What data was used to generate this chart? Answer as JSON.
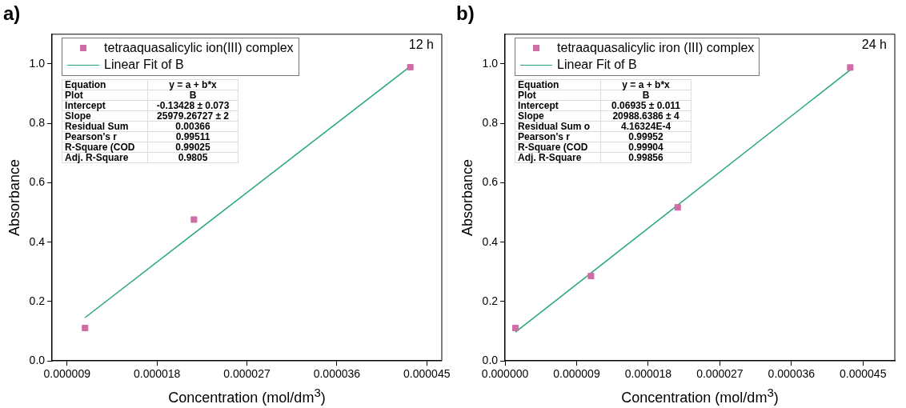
{
  "chart_data": [
    {
      "type": "scatter",
      "title": "a)",
      "xlabel": "Concentration (mol/dm$^{3}$)",
      "ylabel": "Absorbance",
      "xlim": [
        7.5e-06,
        4.65e-05
      ],
      "ylim": [
        0,
        1.1
      ],
      "xticks": [
        {
          "value": 9e-06,
          "label": "0.000009"
        },
        {
          "value": 1.8e-05,
          "label": "0.000018"
        },
        {
          "value": 2.7e-05,
          "label": "0.000027"
        },
        {
          "value": 3.6e-05,
          "label": "0.000036"
        },
        {
          "value": 4.5e-05,
          "label": "0.000045"
        }
      ],
      "yticks": [
        {
          "value": 0,
          "label": "0.0"
        },
        {
          "value": 0.2,
          "label": "0.2"
        },
        {
          "value": 0.4,
          "label": "0.4"
        },
        {
          "value": 0.6,
          "label": "0.6"
        },
        {
          "value": 0.8,
          "label": "0.8"
        },
        {
          "value": 1,
          "label": "1.0"
        }
      ],
      "grid": false,
      "legend": "top left",
      "marker": "square",
      "series": [
        {
          "name": "tetraaquasalicylic ion(III) complex",
          "color": "#d06ca6",
          "x": [
            1.08e-05,
            2.17e-05,
            4.335e-05
          ],
          "values": [
            0.111,
            0.476,
            0.989
          ]
        },
        {
          "name": "Linear Fit of B",
          "type": "line",
          "color": "#2aa67f",
          "line_style": "solid",
          "x": [
            1.08e-05,
            4.335e-05
          ],
          "values": [
            0.146,
            0.992
          ],
          "marker": "none"
        }
      ],
      "annotations": [
        "12 h",
        "Equation",
        "y = a + b*x",
        "Plot",
        "B",
        "Intercept",
        "-0.13428 ± 0.073",
        "Slope",
        "25979.26727 ± 2",
        "Residual Sum",
        "0.00366",
        "Pearson's r",
        "0.99511",
        "R-Square (COD",
        "0.99025",
        "Adj. R-Square",
        "0.9805"
      ]
    },
    {
      "type": "scatter",
      "title": "b)",
      "xlabel": "Concentration (mol/dm$^{3}$)",
      "ylabel": "Absorbance",
      "xlim": [
        0,
        4.9e-05
      ],
      "ylim": [
        0,
        1.1
      ],
      "xticks": [
        {
          "value": 0,
          "label": "0.000000"
        },
        {
          "value": 9e-06,
          "label": "0.000009"
        },
        {
          "value": 1.8e-05,
          "label": "0.000018"
        },
        {
          "value": 2.7e-05,
          "label": "0.000027"
        },
        {
          "value": 3.6e-05,
          "label": "0.000036"
        },
        {
          "value": 4.5e-05,
          "label": "0.000045"
        }
      ],
      "yticks": [
        {
          "value": 0,
          "label": "0.0"
        },
        {
          "value": 0.2,
          "label": "0.2"
        },
        {
          "value": 0.4,
          "label": "0.4"
        },
        {
          "value": 0.6,
          "label": "0.6"
        },
        {
          "value": 0.8,
          "label": "0.8"
        },
        {
          "value": 1,
          "label": "1.0"
        }
      ],
      "grid": false,
      "legend": "top left",
      "marker": "square",
      "series": [
        {
          "name": "tetraaquasalicylic iron (III) complex",
          "color": "#d06ca6",
          "x": [
            1.31e-06,
            1.08e-05,
            2.17e-05,
            4.34e-05
          ],
          "values": [
            0.111,
            0.286,
            0.517,
            0.988
          ]
        },
        {
          "name": "Linear Fit of B",
          "type": "line",
          "color": "#2aa67f",
          "line_style": "solid",
          "x": [
            1.31e-06,
            4.34e-05
          ],
          "values": [
            0.097,
            0.98
          ],
          "marker": "none"
        }
      ],
      "annotations": [
        "24 h",
        "Equation",
        "y = a + b*x",
        "Plot",
        "B",
        "Intercept",
        "0.06935 ± 0.011",
        "Slope",
        "20988.6386 ± 4",
        "Residual Sum o",
        "4.16324E-4",
        "Pearson's r",
        "0.99952",
        "R-Square (COD",
        "0.99904",
        "Adj. R-Square",
        "0.99856"
      ]
    }
  ]
}
